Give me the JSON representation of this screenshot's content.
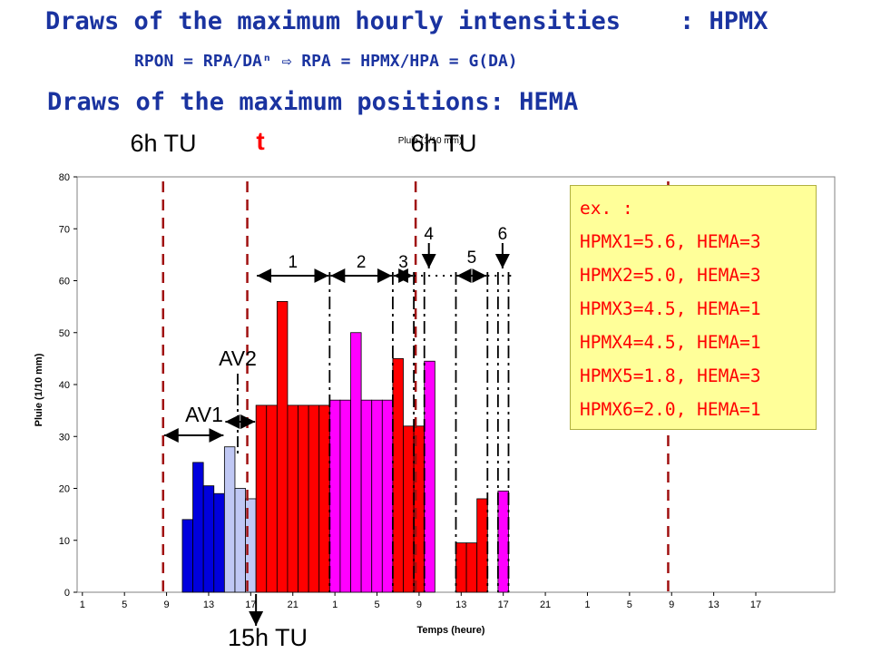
{
  "titles": {
    "line1": "Draws of the maximum hourly intensities    : HPMX",
    "line2": "RPON = RPA/DAⁿ ⇨ RPA = HPMX/HPA = G(DA)",
    "line3": "Draws of the maximum positions: HEMA"
  },
  "example_box": {
    "lines": [
      "ex. :",
      "HPMX1=5.6, HEMA=3",
      "HPMX2=5.0, HEMA=3",
      "HPMX3=4.5, HEMA=1",
      "HPMX4=4.5, HEMA=1",
      "HPMX5=1.8, HEMA=3",
      "HPMX6=2.0, HEMA=1"
    ]
  },
  "annotations": {
    "top_6h_tu_left": "6h TU",
    "top_t": "t",
    "top_chart_title": "Pluie (1/10 mm)",
    "top_6h_tu_right": "6h TU",
    "bottom_15h_tu": "15h TU",
    "av1": "AV1",
    "av2": "AV2",
    "group_labels": [
      "1",
      "2",
      "3",
      "4",
      "5",
      "6"
    ]
  },
  "colors": {
    "title": "#1a33a0",
    "av1_bars": "#0000dd",
    "av2_bars": "#c0c8f4",
    "red_bars": "#ff0000",
    "magenta_bars": "#ff00ff",
    "dashed_lines": "#a01010",
    "box_bg": "#ffff99",
    "box_text": "#ff0000"
  },
  "chart_data": {
    "type": "bar",
    "title": "Pluie (1/10 mm)",
    "xlabel": "Temps (heure)",
    "ylabel": "Pluie (1/10 mm)",
    "ylim": [
      0,
      80
    ],
    "yticks": [
      0,
      10,
      20,
      30,
      40,
      50,
      60,
      70,
      80
    ],
    "x_hours": 72,
    "xtick_labels": [
      "1",
      "5",
      "9",
      "13",
      "17",
      "21",
      "1",
      "5",
      "9",
      "13",
      "17",
      "21",
      "1",
      "5",
      "9",
      "13",
      "17"
    ],
    "xtick_hours": [
      0,
      4,
      8,
      12,
      16,
      20,
      24,
      28,
      32,
      36,
      40,
      44,
      48,
      52,
      56,
      60,
      64
    ],
    "grid": false,
    "series": [
      {
        "name": "AV1",
        "color": "av1_bars",
        "start_hour": 10,
        "values": [
          14,
          25,
          20.5,
          19
        ]
      },
      {
        "name": "AV2",
        "color": "av2_bars",
        "start_hour": 14,
        "values": [
          28,
          20,
          18
        ]
      },
      {
        "name": "1",
        "color": "red_bars",
        "start_hour": 17,
        "values": [
          36,
          36,
          56,
          36,
          36,
          36,
          36
        ]
      },
      {
        "name": "2",
        "color": "magenta_bars",
        "start_hour": 24,
        "values": [
          37,
          37,
          50,
          37,
          37,
          37
        ]
      },
      {
        "name": "3",
        "color": "red_bars",
        "start_hour": 30,
        "values": [
          45,
          32,
          32
        ]
      },
      {
        "name": "4",
        "color": "magenta_bars",
        "start_hour": 33,
        "values": [
          44.5
        ]
      },
      {
        "name": "5",
        "color": "red_bars",
        "start_hour": 36,
        "values": [
          9.5,
          9.5,
          18
        ]
      },
      {
        "name": "6",
        "color": "magenta_bars",
        "start_hour": 40,
        "values": [
          19.5
        ]
      }
    ],
    "dashed_lines_hours": [
      8,
      16,
      32,
      56
    ],
    "dashdot_lines_hours": [
      24,
      30,
      32,
      33,
      36,
      39,
      40,
      41
    ]
  }
}
